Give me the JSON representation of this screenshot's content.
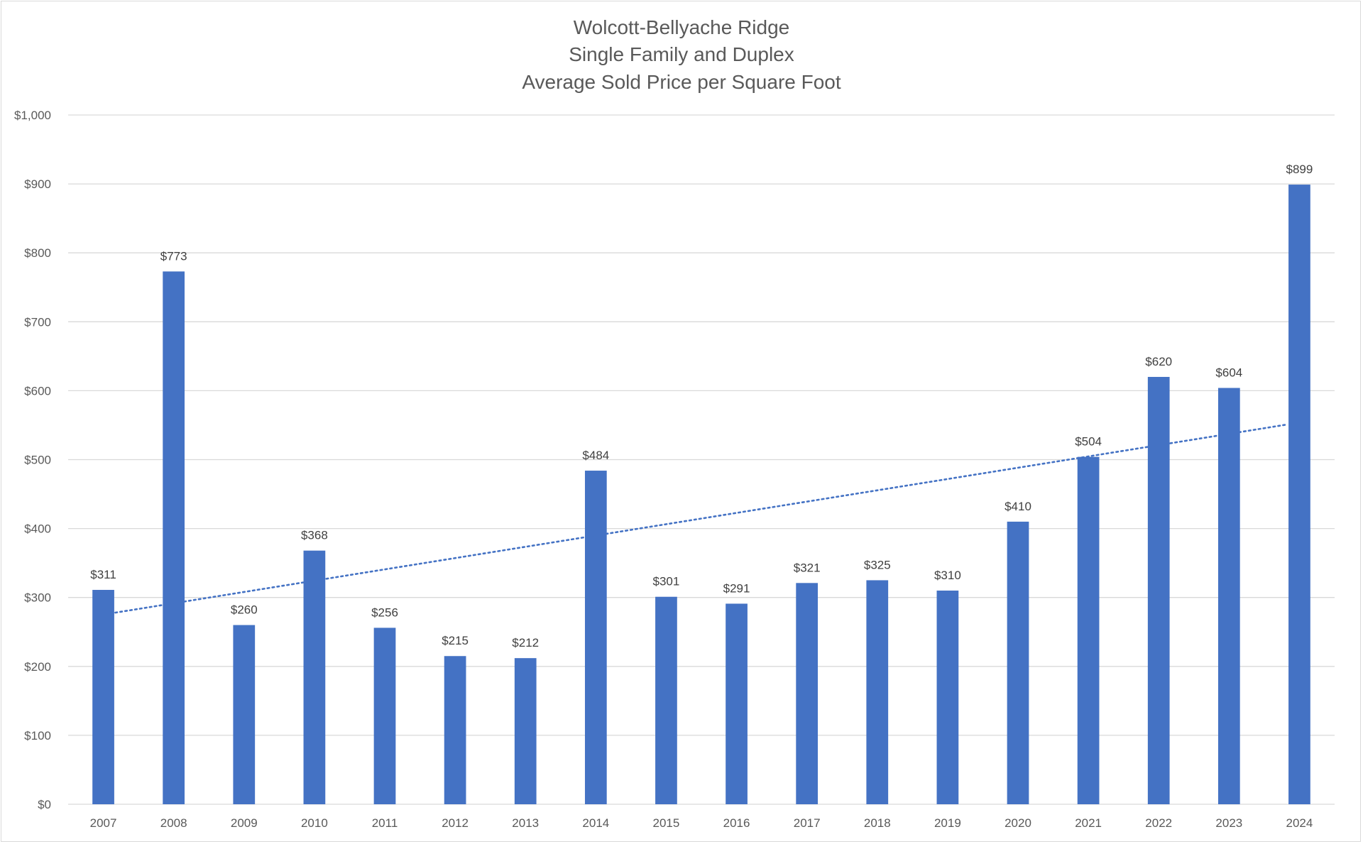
{
  "chart_data": {
    "type": "bar",
    "title": [
      "Wolcott-Bellyache Ridge",
      "Single Family and Duplex",
      "Average Sold Price per Square Foot"
    ],
    "xlabel": "",
    "ylabel": "",
    "categories": [
      "2007",
      "2008",
      "2009",
      "2010",
      "2011",
      "2012",
      "2013",
      "2014",
      "2015",
      "2016",
      "2017",
      "2018",
      "2019",
      "2020",
      "2021",
      "2022",
      "2023",
      "2024"
    ],
    "values": [
      311,
      773,
      260,
      368,
      256,
      215,
      212,
      484,
      301,
      291,
      321,
      325,
      310,
      410,
      504,
      620,
      604,
      899
    ],
    "data_labels": [
      "$311",
      "$773",
      "$260",
      "$368",
      "$256",
      "$215",
      "$212",
      "$484",
      "$301",
      "$291",
      "$321",
      "$325",
      "$310",
      "$410",
      "$504",
      "$620",
      "$604",
      "$899"
    ],
    "ylim": [
      0,
      1000
    ],
    "yticks": [
      0,
      100,
      200,
      300,
      400,
      500,
      600,
      700,
      800,
      900,
      1000
    ],
    "ytick_labels": [
      "$0",
      "$100",
      "$200",
      "$300",
      "$400",
      "$500",
      "$600",
      "$700",
      "$800",
      "$900",
      "$1,000"
    ],
    "trendline": {
      "type": "linear",
      "style": "dotted",
      "start_value": 278,
      "end_value": 551
    },
    "grid": true,
    "legend": "none",
    "colors": {
      "bar": "#4472C4",
      "trendline": "#4472C4",
      "grid": "#d9d9d9",
      "text": "#595959"
    }
  }
}
